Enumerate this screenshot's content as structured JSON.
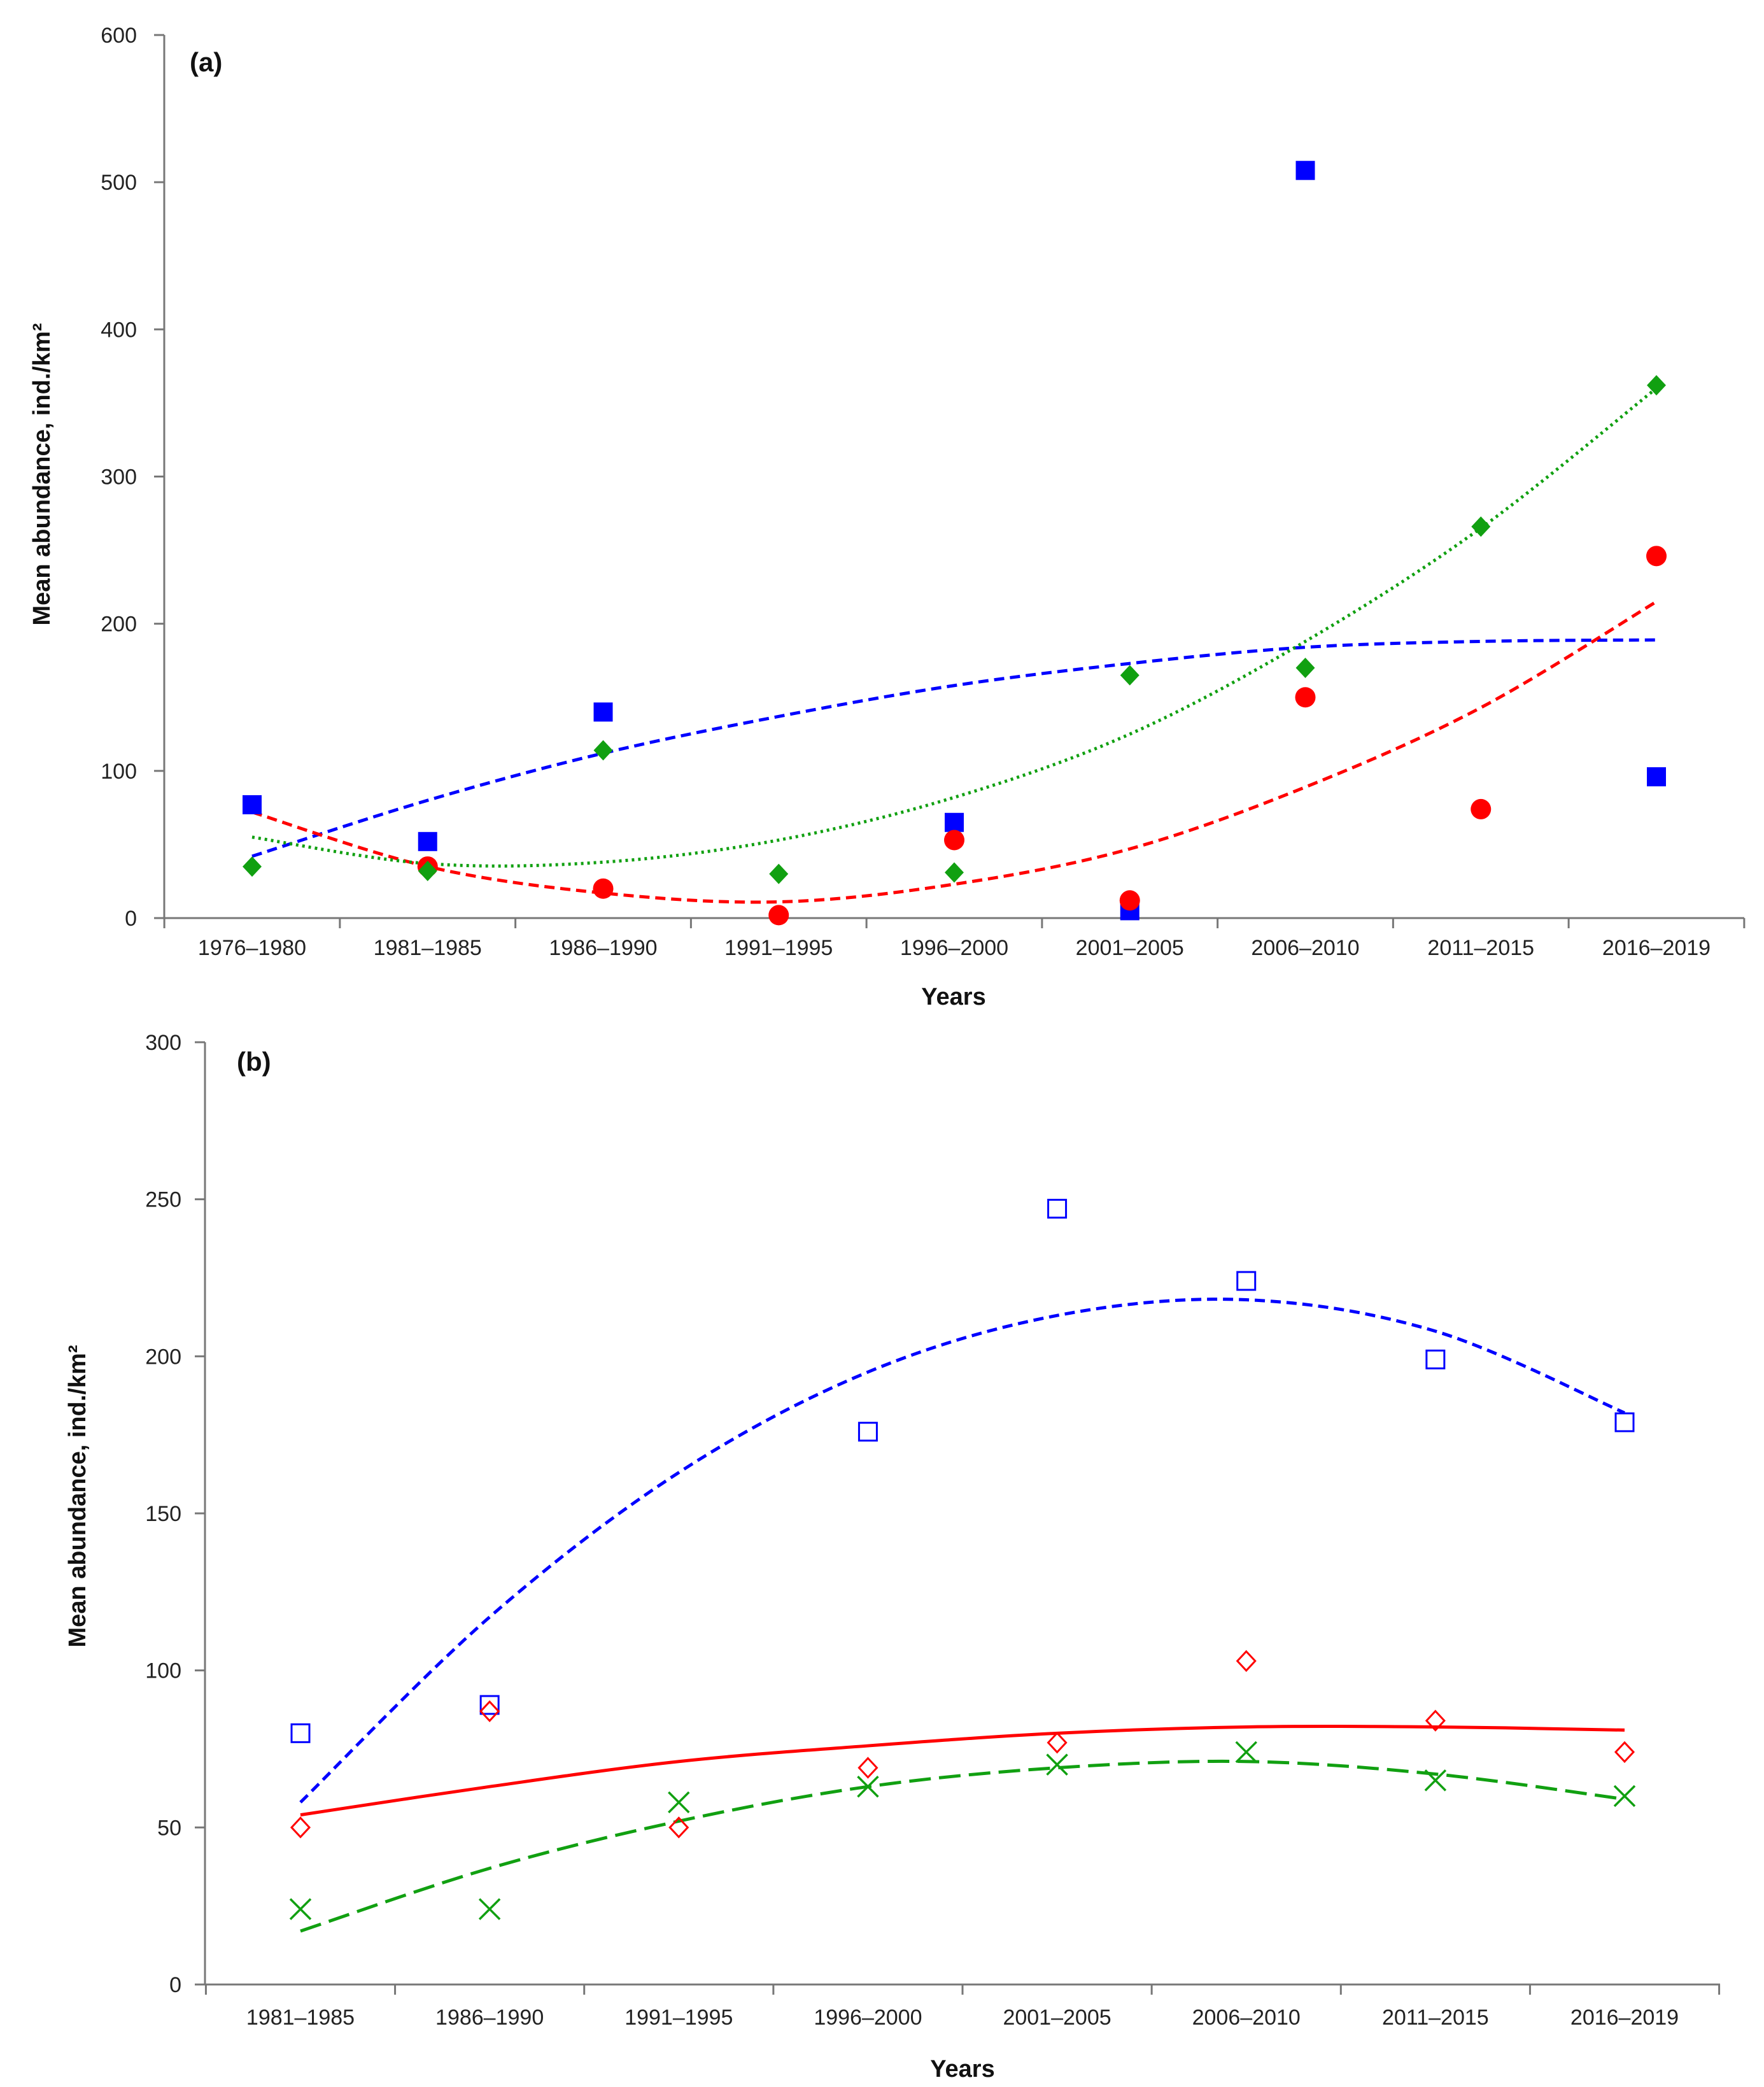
{
  "chart_data": [
    {
      "type": "scatter",
      "panel_label": "(a)",
      "xlabel": "Years",
      "ylabel": "Mean abundance, ind./km²",
      "ylim": [
        0,
        600
      ],
      "yticks": [
        "0",
        "100",
        "200",
        "300",
        "400",
        "500",
        "600"
      ],
      "categories": [
        "1976–1980",
        "1981–1985",
        "1986–1990",
        "1991–1995",
        "1996–2000",
        "2001–2005",
        "2006–2010",
        "2011–2015",
        "2016–2019"
      ],
      "series": [
        {
          "name": "blue squares",
          "marker": "filled-square",
          "color": "#0000ff",
          "values": [
            77,
            52,
            140,
            null,
            65,
            5,
            508,
            null,
            96
          ],
          "trend": [
            42,
            80,
            112,
            137,
            158,
            173,
            184,
            188,
            189
          ],
          "trend_style": "dashed"
        },
        {
          "name": "red circles",
          "marker": "filled-circle",
          "color": "#ff0000",
          "values": [
            null,
            35,
            20,
            2,
            53,
            12,
            150,
            74,
            246
          ],
          "trend": [
            72,
            35,
            17,
            11,
            23,
            47,
            89,
            143,
            215
          ],
          "trend_style": "dashed"
        },
        {
          "name": "green diamonds",
          "marker": "filled-diamond",
          "color": "#11a011",
          "values": [
            35,
            32,
            114,
            30,
            31,
            165,
            170,
            266,
            362
          ],
          "trend": [
            55,
            37,
            38,
            53,
            82,
            125,
            188,
            265,
            360
          ],
          "trend_style": "dotted"
        }
      ]
    },
    {
      "type": "scatter",
      "panel_label": "(b)",
      "xlabel": "Years",
      "ylabel": "Mean abundance, ind./km²",
      "ylim": [
        0,
        300
      ],
      "yticks": [
        "0",
        "50",
        "100",
        "150",
        "200",
        "250",
        "300"
      ],
      "categories": [
        "1981–1985",
        "1986–1990",
        "1991–1995",
        "1996–2000",
        "2001–2005",
        "2006–2010",
        "2011–2015",
        "2016–2019"
      ],
      "series": [
        {
          "name": "blue open squares",
          "marker": "open-square",
          "color": "#0000ff",
          "values": [
            80,
            89,
            null,
            176,
            247,
            224,
            199,
            179
          ],
          "trend": [
            58,
            117,
            163,
            195,
            213,
            218,
            208,
            182
          ],
          "trend_style": "dashed"
        },
        {
          "name": "red open diamonds",
          "marker": "open-diamond",
          "color": "#ff0000",
          "values": [
            50,
            87,
            50,
            69,
            77,
            103,
            84,
            74
          ],
          "trend": [
            54,
            63,
            71,
            76,
            80,
            82,
            82,
            81
          ],
          "trend_style": "solid"
        },
        {
          "name": "green crosses",
          "marker": "cross",
          "color": "#11a011",
          "values": [
            24,
            24,
            58,
            63,
            70,
            74,
            65,
            60
          ],
          "trend": [
            17,
            37,
            52,
            63,
            69,
            71,
            67,
            59
          ],
          "trend_style": "long-dashed"
        }
      ]
    }
  ]
}
